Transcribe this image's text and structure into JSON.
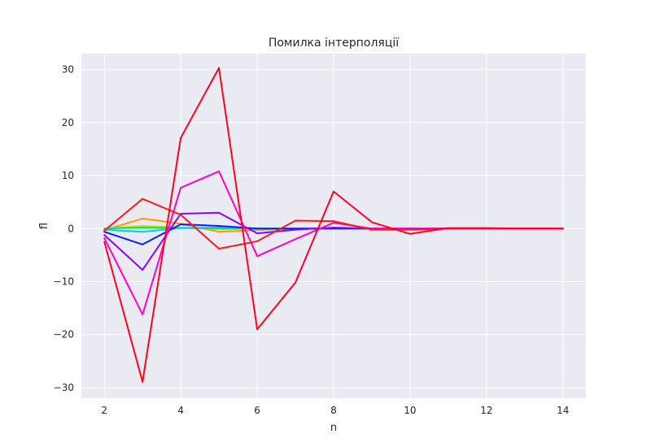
{
  "chart_data": {
    "type": "line",
    "title": "Помилка інтерполяції",
    "xlabel": "n",
    "ylabel": "fl",
    "xlim": [
      1.4,
      14.6
    ],
    "ylim": [
      -32.0,
      33.0
    ],
    "xticks": [
      2,
      4,
      6,
      8,
      10,
      12,
      14
    ],
    "yticks": [
      -30,
      -20,
      -10,
      0,
      10,
      20,
      30
    ],
    "grid": true,
    "background": "#eaeaf2",
    "grid_color": "#ffffff",
    "series": [
      {
        "color": "#ff9800",
        "x": [
          2,
          3,
          4,
          5,
          6,
          7,
          8,
          9,
          10,
          11,
          12,
          13,
          14
        ],
        "y": [
          -0.3,
          1.9,
          0.9,
          -0.6,
          -0.3,
          0.0,
          0.0,
          0.0,
          0.0,
          0.0,
          0.0,
          0.0,
          0.0
        ]
      },
      {
        "color": "#ccdd00",
        "x": [
          2,
          3,
          4,
          5,
          6,
          7,
          8,
          9,
          10,
          11,
          12,
          13,
          14
        ],
        "y": [
          0.0,
          0.5,
          0.2,
          -0.1,
          0.0,
          0.0,
          0.0,
          0.0,
          0.0,
          0.0,
          0.0,
          0.0,
          0.0
        ]
      },
      {
        "color": "#00e676",
        "x": [
          2,
          3,
          4,
          5,
          6,
          7,
          8,
          9,
          10,
          11,
          12,
          13,
          14
        ],
        "y": [
          0.0,
          0.2,
          0.1,
          0.0,
          0.0,
          0.0,
          0.0,
          0.0,
          0.0,
          0.0,
          0.0,
          0.0,
          0.0
        ]
      },
      {
        "color": "#00cfe0",
        "x": [
          2,
          3,
          4,
          5,
          6,
          7,
          8,
          9,
          10,
          11,
          12,
          13,
          14
        ],
        "y": [
          -0.2,
          -0.6,
          0.1,
          0.2,
          0.0,
          0.0,
          0.0,
          0.0,
          0.0,
          0.0,
          0.0,
          0.0,
          0.0
        ]
      },
      {
        "color": "#0022ff",
        "x": [
          2,
          3,
          4,
          5,
          6,
          7,
          8,
          9,
          10,
          11,
          12,
          13,
          14
        ],
        "y": [
          -0.6,
          -3.0,
          0.8,
          0.5,
          0.0,
          0.0,
          0.0,
          0.0,
          0.0,
          0.0,
          0.0,
          0.0,
          0.0
        ]
      },
      {
        "color": "#9000ff",
        "x": [
          2,
          3,
          4,
          5,
          6,
          7,
          8,
          9,
          10,
          11,
          12,
          13,
          14
        ],
        "y": [
          -1.2,
          -7.8,
          2.8,
          3.0,
          -0.9,
          -0.2,
          0.2,
          0.0,
          0.0,
          0.0,
          0.0,
          0.0,
          0.0
        ]
      },
      {
        "color": "#ff00c8",
        "x": [
          2,
          3,
          4,
          5,
          6,
          7,
          8,
          9,
          10,
          11,
          12,
          13,
          14
        ],
        "y": [
          -1.8,
          -16.2,
          7.7,
          10.8,
          -5.2,
          -2.0,
          1.1,
          0.0,
          0.0,
          0.0,
          0.0,
          0.0,
          0.0
        ]
      },
      {
        "color": "#ff1a1a",
        "x": [
          2,
          3,
          4,
          5,
          6,
          7,
          8,
          9,
          10,
          11,
          12,
          13,
          14
        ],
        "y": [
          -0.4,
          5.6,
          2.6,
          -3.8,
          -2.4,
          1.5,
          1.4,
          -0.2,
          -0.2,
          0.0,
          0.0,
          0.0,
          0.0
        ]
      },
      {
        "color": "#ff0022",
        "x": [
          2,
          3,
          4,
          5,
          6,
          7,
          8,
          9,
          10,
          11,
          12,
          13,
          14
        ],
        "y": [
          -2.5,
          -28.9,
          17.1,
          30.3,
          -19.0,
          -10.2,
          7.0,
          1.2,
          -1.0,
          0.1,
          0.1,
          0.0,
          0.0
        ]
      }
    ]
  }
}
